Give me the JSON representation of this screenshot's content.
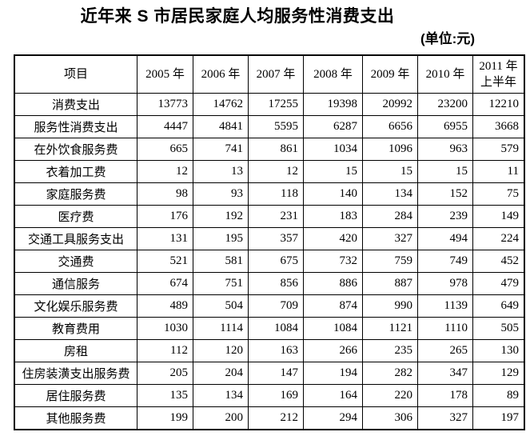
{
  "title": "近年来 S 市居民家庭人均服务性消费支出",
  "unit_note": "(单位:元)",
  "table": {
    "columns": [
      "项目",
      "2005 年",
      "2006 年",
      "2007 年",
      "2008 年",
      "2009 年",
      "2010 年",
      "2011 年\n上半年"
    ],
    "rows": [
      {
        "label": "消费支出",
        "values": [
          13773,
          14762,
          17255,
          19398,
          20992,
          23200,
          12210
        ]
      },
      {
        "label": "服务性消费支出",
        "values": [
          4447,
          4841,
          5595,
          6287,
          6656,
          6955,
          3668
        ]
      },
      {
        "label": "在外饮食服务费",
        "values": [
          665,
          741,
          861,
          1034,
          1096,
          963,
          579
        ]
      },
      {
        "label": "衣着加工费",
        "values": [
          12,
          13,
          12,
          15,
          15,
          15,
          11
        ]
      },
      {
        "label": "家庭服务费",
        "values": [
          98,
          93,
          118,
          140,
          134,
          152,
          75
        ]
      },
      {
        "label": "医疗费",
        "values": [
          176,
          192,
          231,
          183,
          284,
          239,
          149
        ]
      },
      {
        "label": "交通工具服务支出",
        "values": [
          131,
          195,
          357,
          420,
          327,
          494,
          224
        ]
      },
      {
        "label": "交通费",
        "values": [
          521,
          581,
          675,
          732,
          759,
          749,
          452
        ]
      },
      {
        "label": "通信服务",
        "values": [
          674,
          751,
          856,
          886,
          887,
          978,
          479
        ]
      },
      {
        "label": "文化娱乐服务费",
        "values": [
          489,
          504,
          709,
          874,
          990,
          1139,
          649
        ]
      },
      {
        "label": "教育费用",
        "values": [
          1030,
          1114,
          1084,
          1084,
          1121,
          1110,
          505
        ]
      },
      {
        "label": "房租",
        "values": [
          112,
          120,
          163,
          266,
          235,
          265,
          130
        ]
      },
      {
        "label": "住房装潢支出服务费",
        "values": [
          205,
          204,
          147,
          194,
          282,
          347,
          129
        ]
      },
      {
        "label": "居住服务费",
        "values": [
          135,
          134,
          169,
          164,
          220,
          178,
          89
        ]
      },
      {
        "label": "其他服务费",
        "values": [
          199,
          200,
          212,
          294,
          306,
          327,
          197
        ]
      }
    ]
  }
}
